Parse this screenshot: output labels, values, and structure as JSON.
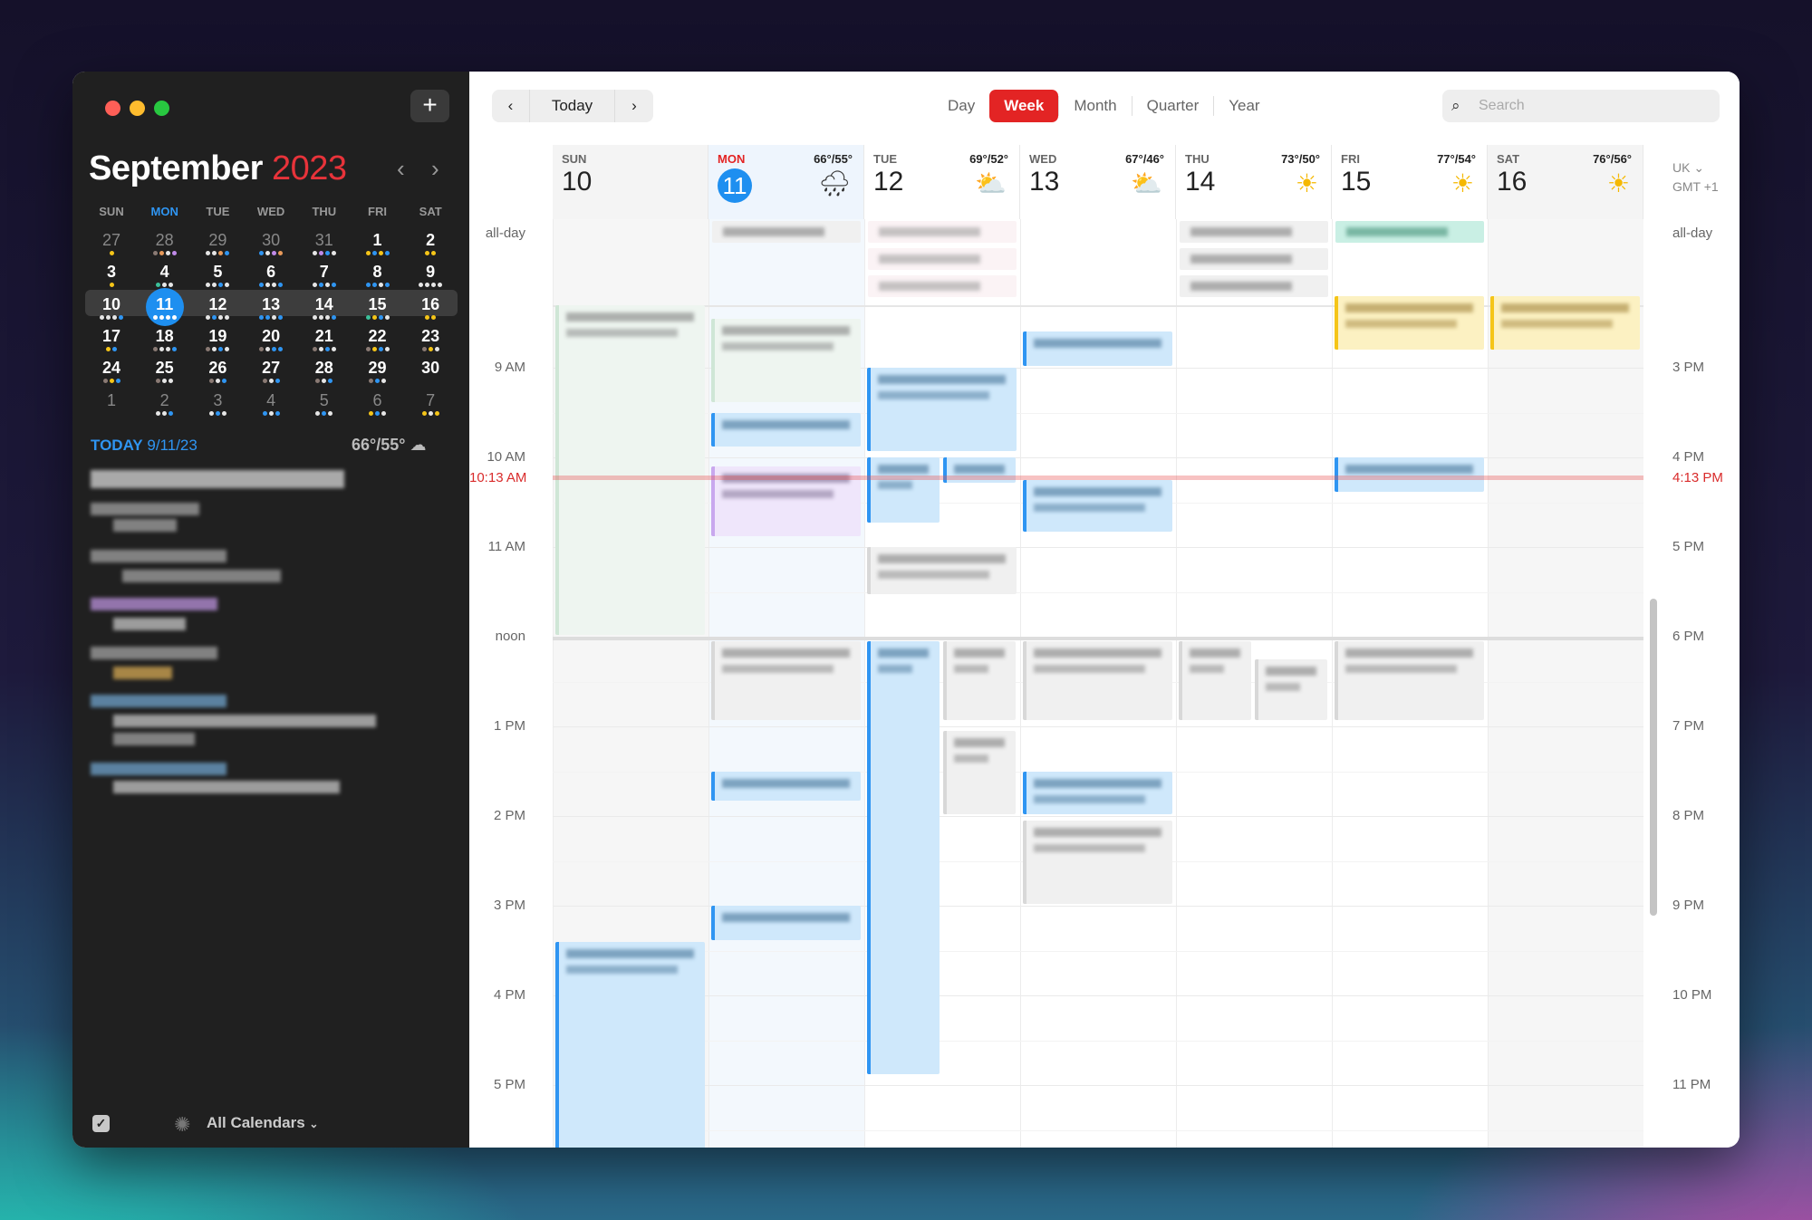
{
  "sidebar": {
    "add_label": "+",
    "month": "September",
    "year": "2023",
    "prev_icon": "‹",
    "next_icon": "›",
    "weekdays": [
      "SUN",
      "MON",
      "TUE",
      "WED",
      "THU",
      "FRI",
      "SAT"
    ],
    "weeks": [
      [
        [
          "27",
          "y",
          1
        ],
        [
          "28",
          "gowp",
          1
        ],
        [
          "29",
          "wwob",
          1
        ],
        [
          "30",
          "bwpo",
          1
        ],
        [
          "31",
          "wpbw",
          1
        ],
        [
          "1",
          "ybyb",
          0
        ],
        [
          "2",
          "yy",
          0
        ]
      ],
      [
        [
          "3",
          "y",
          0
        ],
        [
          "4",
          "tww",
          0
        ],
        [
          "5",
          "wwbw",
          0
        ],
        [
          "6",
          "bwwb",
          0
        ],
        [
          "7",
          "wbwb",
          0
        ],
        [
          "8",
          "bbwb",
          0
        ],
        [
          "9",
          "wwww",
          0
        ]
      ],
      [
        [
          "10",
          "wwwb",
          0
        ],
        [
          "11",
          "wwww",
          0
        ],
        [
          "12",
          "wbww",
          0
        ],
        [
          "13",
          "bbwb",
          0
        ],
        [
          "14",
          "wwwb",
          0
        ],
        [
          "15",
          "tybw",
          0
        ],
        [
          "16",
          "yy",
          0
        ]
      ],
      [
        [
          "17",
          "yb",
          0
        ],
        [
          "18",
          "gwwb",
          0
        ],
        [
          "19",
          "gwbw",
          0
        ],
        [
          "20",
          "gwbb",
          0
        ],
        [
          "21",
          "gwbw",
          0
        ],
        [
          "22",
          "gybw",
          0
        ],
        [
          "23",
          "gyw",
          0
        ]
      ],
      [
        [
          "24",
          "gyb",
          0
        ],
        [
          "25",
          "gww",
          0
        ],
        [
          "26",
          "gwb",
          0
        ],
        [
          "27",
          "gwb",
          0
        ],
        [
          "28",
          "gwb",
          0
        ],
        [
          "29",
          "gbw",
          0
        ],
        [
          "30",
          "",
          0
        ]
      ],
      [
        [
          "1",
          "",
          1
        ],
        [
          "2",
          "wwb",
          1
        ],
        [
          "3",
          "wbw",
          1
        ],
        [
          "4",
          "bwb",
          1
        ],
        [
          "5",
          "wbw",
          1
        ],
        [
          "6",
          "ybw",
          1
        ],
        [
          "7",
          "ywy",
          1
        ]
      ]
    ],
    "today_label": "TODAY",
    "today_date": "9/11/23",
    "today_weather": "66°/55°",
    "today_weather_icon": "cloud-icon",
    "footer": {
      "calendars_label": "All Calendars"
    }
  },
  "toolbar": {
    "prev": "‹",
    "today": "Today",
    "next": "›",
    "views": [
      "Day",
      "Week",
      "Month",
      "Quarter",
      "Year"
    ],
    "active_view": "Week",
    "search_placeholder": "Search"
  },
  "week": {
    "days": [
      {
        "name": "SUN",
        "date": "10",
        "temp": "",
        "icon": ""
      },
      {
        "name": "MON",
        "date": "11",
        "temp": "66°/55°",
        "icon": "rain-icon",
        "today": true
      },
      {
        "name": "TUE",
        "date": "12",
        "temp": "69°/52°",
        "icon": "partly-cloudy-icon"
      },
      {
        "name": "WED",
        "date": "13",
        "temp": "67°/46°",
        "icon": "partly-cloudy-icon"
      },
      {
        "name": "THU",
        "date": "14",
        "temp": "73°/50°",
        "icon": "sun-icon"
      },
      {
        "name": "FRI",
        "date": "15",
        "temp": "77°/54°",
        "icon": "sun-icon"
      },
      {
        "name": "SAT",
        "date": "16",
        "temp": "76°/56°",
        "icon": "sun-icon"
      }
    ],
    "timezone": "UK ⌄",
    "timezone_offset": "GMT +1",
    "allday_label": "all-day",
    "hours_left": [
      "9 AM",
      "10 AM",
      "11 AM",
      "noon",
      "1 PM",
      "2 PM",
      "3 PM",
      "4 PM",
      "5 PM"
    ],
    "hours_right": [
      "3 PM",
      "4 PM",
      "5 PM",
      "6 PM",
      "7 PM",
      "8 PM",
      "9 PM",
      "10 PM",
      "11 PM"
    ],
    "now_label": "10:13 AM",
    "now_label_right": "4:13 PM",
    "now_hour": 10.22,
    "colors": {
      "accent": "#e32424",
      "today": "#1e8ff0",
      "blue": "#2f95f2",
      "now": "#d92b2b"
    },
    "events": [
      {
        "day": 0,
        "start": 8.3,
        "end": 12.0,
        "c": "green"
      },
      {
        "day": 0,
        "start": 15.4,
        "end": 17.8,
        "c": "blue"
      },
      {
        "day": 1,
        "start": 8.45,
        "end": 9.4,
        "c": "green"
      },
      {
        "day": 1,
        "start": 9.5,
        "end": 9.9,
        "c": "blue"
      },
      {
        "day": 1,
        "start": 10.1,
        "end": 10.9,
        "c": "purple"
      },
      {
        "day": 1,
        "start": 12.05,
        "end": 12.95,
        "c": "grey"
      },
      {
        "day": 1,
        "start": 13.5,
        "end": 13.85,
        "c": "blue"
      },
      {
        "day": 1,
        "start": 15.0,
        "end": 15.4,
        "c": "blue"
      },
      {
        "day": 2,
        "start": 9.0,
        "end": 9.95,
        "c": "blue"
      },
      {
        "day": 2,
        "start": 10.0,
        "end": 10.75,
        "c": "blue",
        "half": 0
      },
      {
        "day": 2,
        "start": 10.0,
        "end": 10.3,
        "c": "blue",
        "half": 1
      },
      {
        "day": 2,
        "start": 11.0,
        "end": 11.55,
        "c": "grey"
      },
      {
        "day": 2,
        "start": 12.05,
        "end": 16.9,
        "c": "blue",
        "half": 0
      },
      {
        "day": 2,
        "start": 12.05,
        "end": 12.95,
        "c": "grey",
        "half": 1
      },
      {
        "day": 2,
        "start": 13.05,
        "end": 14.0,
        "c": "grey",
        "half": 1
      },
      {
        "day": 3,
        "start": 8.6,
        "end": 9.0,
        "c": "blue"
      },
      {
        "day": 3,
        "start": 10.25,
        "end": 10.85,
        "c": "blue"
      },
      {
        "day": 3,
        "start": 12.05,
        "end": 12.95,
        "c": "grey"
      },
      {
        "day": 3,
        "start": 13.5,
        "end": 14.0,
        "c": "blue"
      },
      {
        "day": 3,
        "start": 14.05,
        "end": 15.0,
        "c": "grey"
      },
      {
        "day": 4,
        "start": 12.05,
        "end": 12.95,
        "c": "grey",
        "half": 0
      },
      {
        "day": 4,
        "start": 12.25,
        "end": 12.95,
        "c": "grey",
        "half": 1
      },
      {
        "day": 5,
        "start": 8.2,
        "end": 8.82,
        "c": "yellow"
      },
      {
        "day": 5,
        "start": 10.0,
        "end": 10.4,
        "c": "blue"
      },
      {
        "day": 5,
        "start": 12.05,
        "end": 12.95,
        "c": "grey"
      },
      {
        "day": 6,
        "start": 8.2,
        "end": 8.82,
        "c": "yellow"
      }
    ],
    "allday_events": [
      {
        "day": 1,
        "row": 0,
        "c": "grey"
      },
      {
        "day": 2,
        "row": 0,
        "c": "pink"
      },
      {
        "day": 2,
        "row": 1,
        "c": "pink"
      },
      {
        "day": 2,
        "row": 2,
        "c": "pink"
      },
      {
        "day": 4,
        "row": 0,
        "c": "grey"
      },
      {
        "day": 4,
        "row": 1,
        "c": "grey"
      },
      {
        "day": 4,
        "row": 2,
        "c": "grey"
      },
      {
        "day": 5,
        "row": 0,
        "c": "teal"
      }
    ]
  }
}
